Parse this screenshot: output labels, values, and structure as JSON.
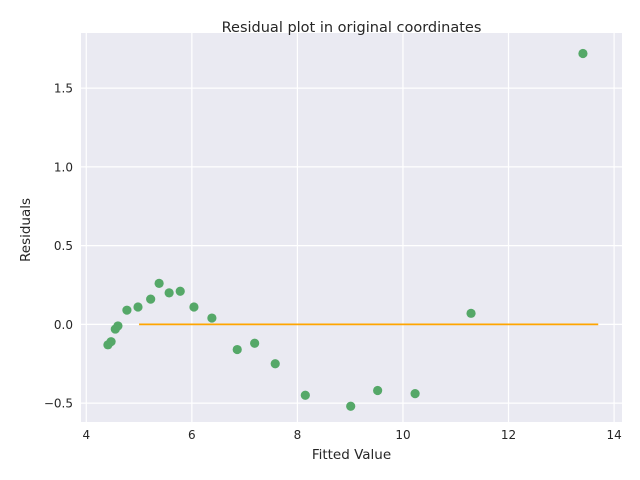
{
  "chart_data": {
    "type": "scatter",
    "title": "Residual plot in original coordinates",
    "xlabel": "Fitted Value",
    "ylabel": "Residuals",
    "xlim": [
      3.9,
      14.15
    ],
    "ylim": [
      -0.62,
      1.85
    ],
    "xticks": [
      4,
      6,
      8,
      10,
      12,
      14
    ],
    "yticks": [
      -0.5,
      0.0,
      0.5,
      1.0,
      1.5
    ],
    "ytick_labels": [
      "−0.5",
      "0.0",
      "0.5",
      "1.0",
      "1.5"
    ],
    "grid": true,
    "legend": "none",
    "colors": {
      "background": "#eaeaf2",
      "grid": "#ffffff",
      "points": "#55a868",
      "reference_line": "#ffa500"
    },
    "series": [
      {
        "type": "scatter",
        "x": [
          4.41,
          4.47,
          4.55,
          4.6,
          4.77,
          4.98,
          5.22,
          5.38,
          5.57,
          5.78,
          6.04,
          6.38,
          6.86,
          7.19,
          7.58,
          8.15,
          9.01,
          9.52,
          10.23,
          11.29,
          13.41
        ],
        "y": [
          -0.13,
          -0.11,
          -0.03,
          -0.01,
          0.09,
          0.11,
          0.16,
          0.26,
          0.2,
          0.21,
          0.11,
          0.04,
          -0.16,
          -0.12,
          -0.25,
          -0.45,
          -0.52,
          -0.42,
          -0.44,
          0.07,
          1.72
        ]
      },
      {
        "type": "line",
        "x": [
          5.0,
          13.7
        ],
        "y": [
          0.0,
          0.0
        ]
      }
    ]
  }
}
